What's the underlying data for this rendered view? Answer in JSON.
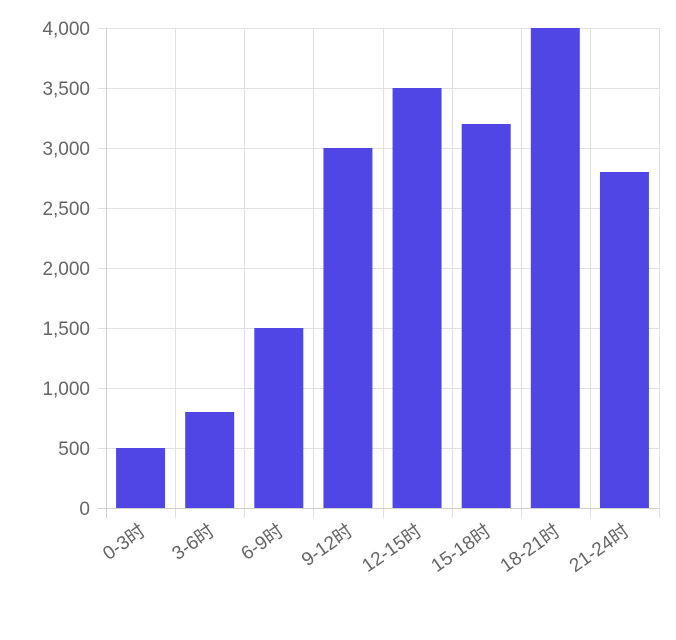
{
  "chart_data": {
    "type": "bar",
    "title": "",
    "xlabel": "",
    "ylabel": "",
    "categories": [
      "0-3时",
      "3-6时",
      "6-9时",
      "9-12时",
      "12-15时",
      "15-18时",
      "18-21时",
      "21-24时"
    ],
    "series": [
      {
        "values": [
          500,
          800,
          1500,
          3000,
          3500,
          3200,
          4000,
          2800
        ]
      }
    ],
    "ylim": [
      0,
      4000
    ],
    "yticks": [
      0,
      500,
      1000,
      1500,
      2000,
      2500,
      3000,
      3500,
      4000
    ],
    "ytick_labels": [
      "0",
      "500",
      "1,000",
      "1,500",
      "2,000",
      "2,500",
      "3,000",
      "3,500",
      "4,000"
    ],
    "grid": true,
    "bar_color": "#4f46e5",
    "legend": "none"
  }
}
